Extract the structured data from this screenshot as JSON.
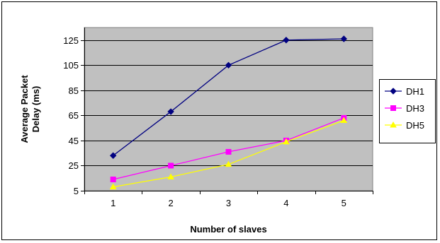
{
  "chart_data": {
    "type": "line",
    "title": "",
    "xlabel": "Number of slaves",
    "ylabel": "Average Packet Delay (ms)",
    "ylabel_lines": [
      "Average Packet",
      "Delay (ms)"
    ],
    "categories": [
      "1",
      "2",
      "3",
      "4",
      "5"
    ],
    "ylim": [
      5,
      135
    ],
    "yticks": [
      5,
      25,
      45,
      65,
      85,
      105,
      125
    ],
    "grid": true,
    "plot_background": "#c0c0c0",
    "legend_position": "right",
    "series": [
      {
        "name": "DH1",
        "color": "#000080",
        "marker": "diamond",
        "values": [
          33,
          68,
          105,
          125,
          126
        ]
      },
      {
        "name": "DH3",
        "color": "#ff00ff",
        "marker": "square",
        "values": [
          14,
          25,
          36,
          45,
          63
        ]
      },
      {
        "name": "DH5",
        "color": "#ffff00",
        "marker": "triangle",
        "values": [
          8,
          16,
          26,
          44,
          61
        ]
      }
    ]
  }
}
